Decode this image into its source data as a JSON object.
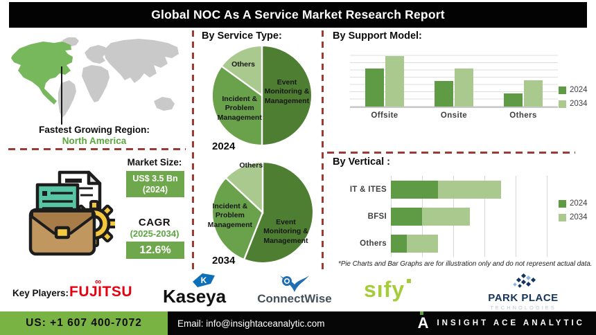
{
  "title": "Global NOC As A Service Market Research Report",
  "region": {
    "heading": "Fastest Growing Region:",
    "value": "North America"
  },
  "market": {
    "size_heading": "Market Size:",
    "size_value": "US$ 3.5 Bn",
    "size_year": "(2024)",
    "cagr_heading": "CAGR",
    "cagr_period": "(2025-2034)",
    "cagr_value": "12.6%"
  },
  "players": {
    "heading": "Key Players:",
    "fujitsu": "FUJITSU",
    "kaseya": "Kaseya",
    "kaseya_initial": "K",
    "connectwise": "ConnectWise",
    "sify": "sıfy",
    "parkplace_name": "PARK PLACE",
    "parkplace_sub": "TECHNOLOGIES"
  },
  "footer": {
    "phone": "US: +1 607 400-7072",
    "email": "Email: info@insightaceanalytic.com",
    "brand_initial": "A",
    "brand": "INSIGHT ACE ANALYTIC"
  },
  "icons": {
    "infinity": "∞"
  },
  "colors": {
    "accent_green": "#6fa84c",
    "footer_green": "#78b344",
    "divider_red": "#9c3b35",
    "map_highlight": "#77b85c",
    "map_base": "#c9c9c9",
    "text_green": "#5aa63f",
    "fujitsu_red": "#e60012",
    "kaseya_blue": "#0d6fb8",
    "connectwise_blue": "#1f6fb2",
    "sify_green": "#a4cd39",
    "parkplace_navy": "#16355c"
  },
  "chart_data": [
    {
      "id": "service_type_2024",
      "type": "pie",
      "title": "By Service Type:",
      "year_label": "2024",
      "slices": [
        {
          "label": "Event Monitoring & Management",
          "value": 50,
          "color": "#4e7e31",
          "label_box": {
            "left": "50%",
            "top": "33%",
            "width": "48%"
          }
        },
        {
          "label": "Incident & Problem Management",
          "value": 35,
          "color": "#6aa24c",
          "label_box": {
            "left": "5%",
            "top": "49%",
            "width": "47%"
          }
        },
        {
          "label": "Others",
          "value": 15,
          "color": "#a9c98f",
          "label_box": {
            "left": "15%",
            "top": "16%",
            "width": "34%"
          }
        }
      ]
    },
    {
      "id": "service_type_2034",
      "type": "pie",
      "year_label": "2034",
      "slices": [
        {
          "label": "Event Monitoring & Management",
          "value": 56,
          "color": "#4e7e31",
          "label_box": {
            "left": "47%",
            "top": "55%",
            "width": "50%"
          }
        },
        {
          "label": "Incident & Problem Management",
          "value": 31,
          "color": "#6aa24c",
          "label_box": {
            "left": "-6%",
            "top": "40%",
            "width": "50%"
          }
        },
        {
          "label": "Others",
          "value": 13,
          "color": "#a9c98f",
          "label_box": {
            "left": "17%",
            "top": "1%",
            "width": "44%"
          }
        }
      ]
    },
    {
      "id": "support_model",
      "type": "bar",
      "title": "By Support Model:",
      "categories": [
        "Offsite",
        "Onsite",
        "Others"
      ],
      "series": [
        {
          "name": "2024",
          "color": "#5f9a44",
          "values": [
            65,
            44,
            23
          ]
        },
        {
          "name": "2034",
          "color": "#a9c98f",
          "values": [
            87,
            65,
            45
          ]
        }
      ],
      "ylim": [
        0,
        100
      ],
      "grid": "horizontal",
      "legend_position": "right"
    },
    {
      "id": "vertical",
      "type": "stacked-hbar",
      "title": "By Vertical :",
      "categories": [
        "IT & ITES",
        "BFSI",
        "Others"
      ],
      "series": [
        {
          "name": "2024",
          "color": "#5f9a44",
          "values": [
            1.5,
            1.0,
            0.5
          ]
        },
        {
          "name": "2034",
          "color": "#a9c98f",
          "values": [
            2.0,
            1.5,
            1.0
          ]
        }
      ],
      "xlim": [
        0,
        5.5
      ],
      "grid": "vertical",
      "legend_position": "right",
      "footnote": "*Pie Charts and Bar Graphs are for illustration only and do not represent actual data."
    }
  ]
}
